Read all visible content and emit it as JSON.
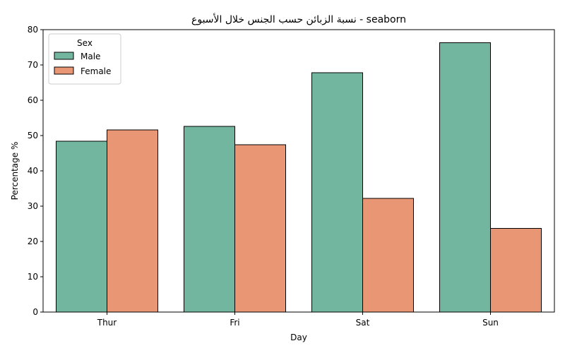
{
  "chart_data": {
    "type": "bar",
    "title": "نسبة الزبائن حسب الجنس خلال الأسبوع - seaborn",
    "xlabel": "Day",
    "ylabel": "Percentage %",
    "categories": [
      "Thur",
      "Fri",
      "Sat",
      "Sun"
    ],
    "ylim": [
      0,
      80
    ],
    "yticks": [
      0,
      10,
      20,
      30,
      40,
      50,
      60,
      70,
      80
    ],
    "legend": {
      "title": "Sex",
      "placement": "top-left"
    },
    "series": [
      {
        "name": "Male",
        "color": "#73b6a0",
        "values": [
          48.4,
          52.6,
          67.8,
          76.3
        ]
      },
      {
        "name": "Female",
        "color": "#e99674",
        "values": [
          51.6,
          47.4,
          32.2,
          23.7
        ]
      }
    ],
    "grid": false
  }
}
